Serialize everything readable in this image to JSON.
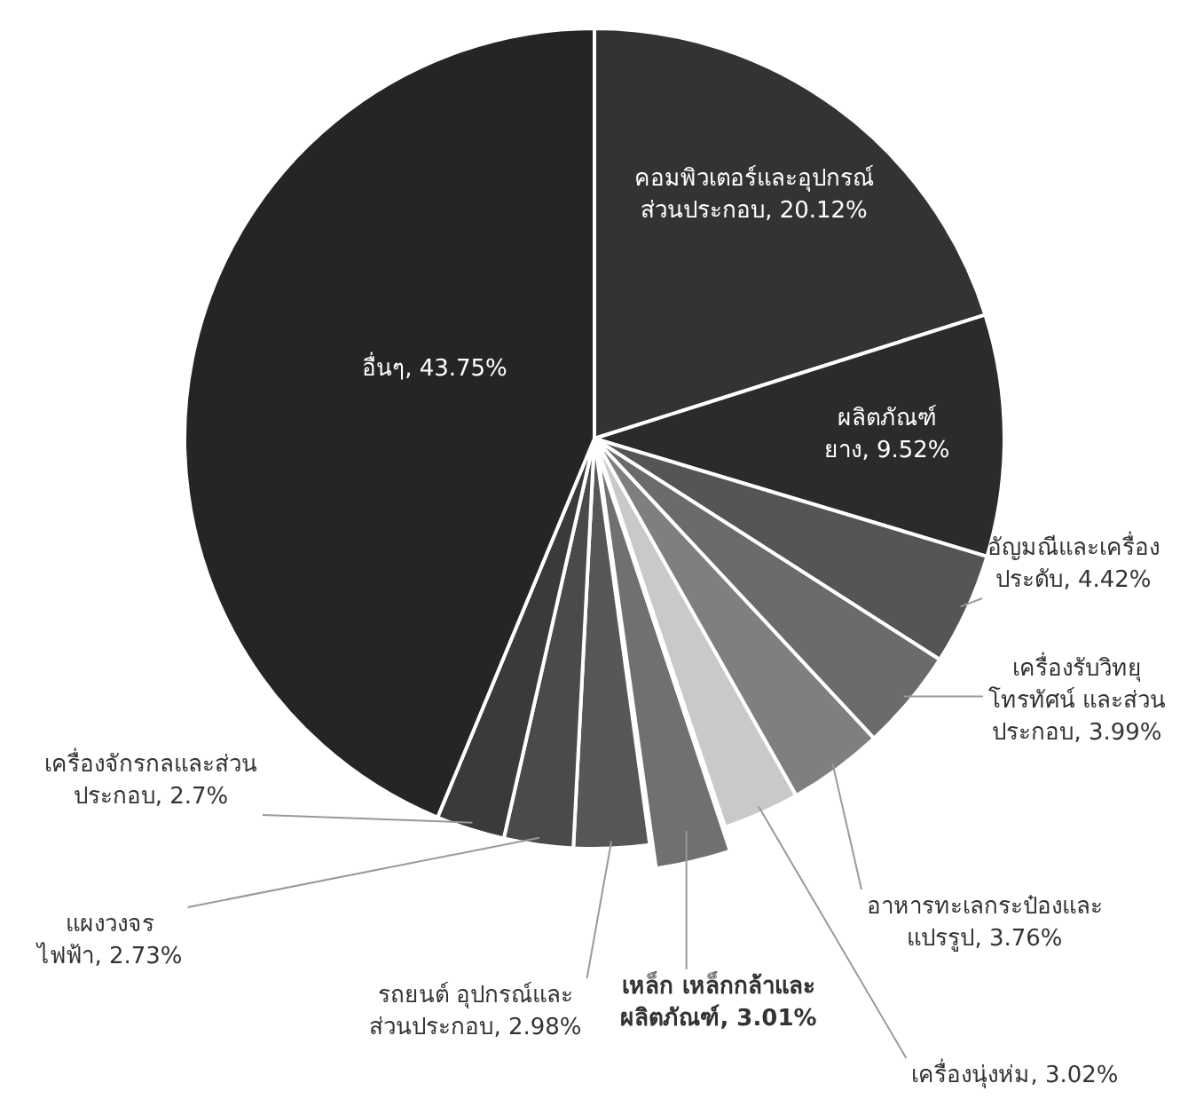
{
  "chart_data": {
    "type": "pie",
    "categories": [
      "คอมพิวเตอร์และอุปกรณ์ส่วนประกอบ",
      "ผลิตภัณฑ์ยาง",
      "อัญมณีและเครื่องประดับ",
      "เครื่องรับวิทยุโทรทัศน์ และส่วนประกอบ",
      "อาหารทะเลกระป๋องและแปรรูป",
      "เครื่องนุ่งห่ม",
      "เหล็ก เหล็กกล้าและผลิตภัณฑ์",
      "รถยนต์ อุปกรณ์และส่วนประกอบ",
      "แผงวงจรไฟฟ้า",
      "เครื่องจักรกลและส่วนประกอบ",
      "อื่นๆ"
    ],
    "values": [
      20.12,
      9.52,
      4.42,
      3.99,
      3.76,
      3.02,
      3.01,
      2.98,
      2.73,
      2.7,
      43.75
    ],
    "value_labels": [
      "20.12%",
      "9.52%",
      "4.42%",
      "3.99%",
      "3.76%",
      "3.02%",
      "3.01%",
      "2.98%",
      "2.73%",
      "2.7%",
      "43.75%"
    ],
    "colors": [
      "#333333",
      "#2b2b2b",
      "#555555",
      "#6b6b6b",
      "#7f7f7f",
      "#c9c9c9",
      "#707070",
      "#575757",
      "#4a4a4a",
      "#3a3a3a",
      "#252525"
    ],
    "legend": false
  }
}
